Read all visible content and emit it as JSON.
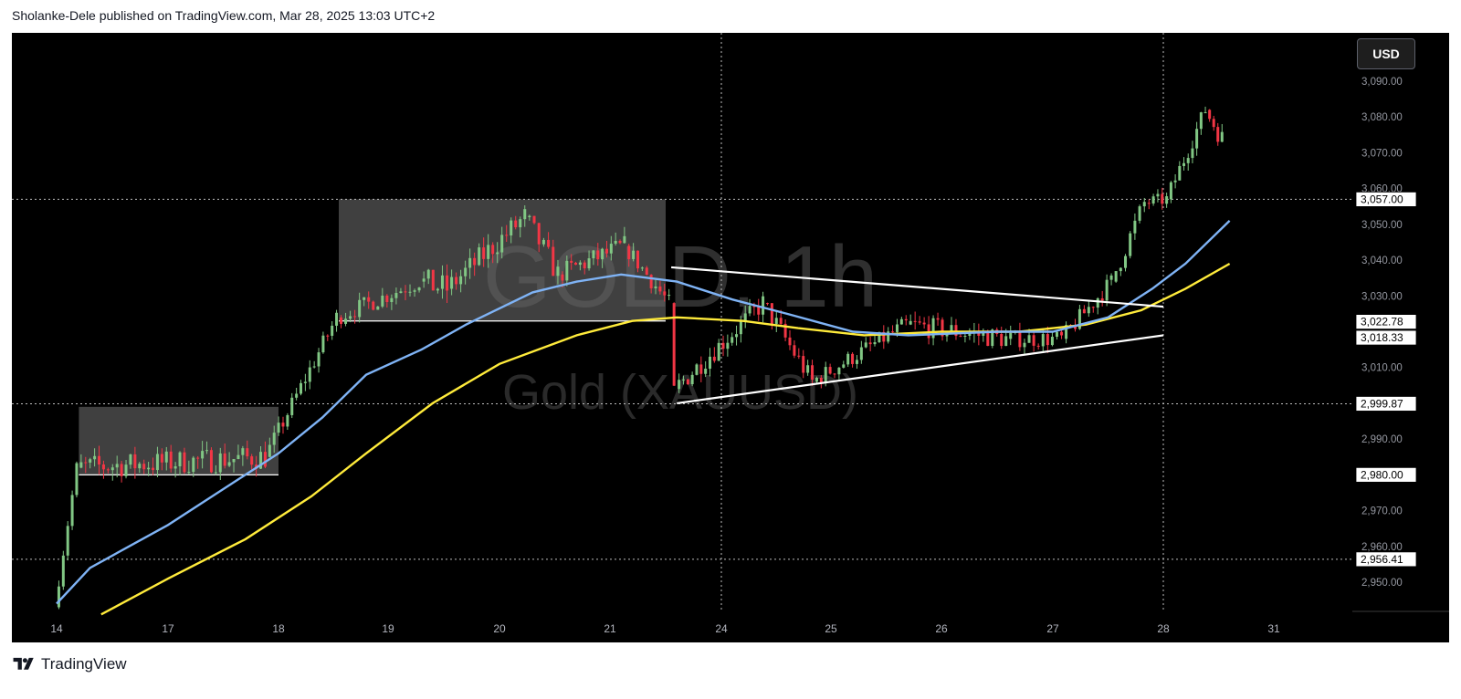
{
  "header": {
    "text": "Sholanke-Dele published on TradingView.com, Mar 28, 2025 13:03 UTC+2"
  },
  "footer": {
    "brand": "TradingView"
  },
  "toolbar": {
    "currency": "USD"
  },
  "watermark": {
    "symbol": "GOLD, 1h",
    "name": "Gold (XAUUSD)"
  },
  "colors": {
    "background": "#000000",
    "up": "#81c784",
    "down": "#f23645",
    "ma_fast": "#7fb3f5",
    "ma_slow": "#ffeb3b",
    "box": "#6b6b6b",
    "trendline": "#ffffff"
  },
  "chart_data": {
    "type": "candlestick",
    "symbol": "GOLD",
    "timeframe": "1h",
    "currency": "USD",
    "x_tick_labels": [
      "14",
      "17",
      "18",
      "19",
      "20",
      "21",
      "24",
      "25",
      "26",
      "27",
      "28",
      "31"
    ],
    "y_tick_labels": [
      "3,090.00",
      "3,080.00",
      "3,070.00",
      "3,060.00",
      "3,050.00",
      "3,040.00",
      "3,030.00",
      "3,010.00",
      "2,990.00",
      "2,970.00",
      "2,960.00",
      "2,950.00"
    ],
    "y_range": [
      2941,
      3100
    ],
    "price_labels": [
      {
        "value": 3057.0,
        "text": "3,057.00",
        "style": "dotted-line"
      },
      {
        "value": 3022.78,
        "text": "3,022.78",
        "style": "plain"
      },
      {
        "value": 3018.33,
        "text": "3,018.33",
        "style": "plain"
      },
      {
        "value": 2999.87,
        "text": "2,999.87",
        "style": "dotted-line"
      },
      {
        "value": 2980.0,
        "text": "2,980.00",
        "style": "plain"
      },
      {
        "value": 2956.41,
        "text": "2,956.41",
        "style": "dotted-line"
      }
    ],
    "vertical_markers": [
      "24",
      "28"
    ],
    "segments": [
      {
        "from": "14",
        "to": "14.2",
        "start": 2943,
        "end": 2982,
        "vol": 4
      },
      {
        "from": "14.2",
        "to": "17.9",
        "start": 2982,
        "end": 2985,
        "vol": 7
      },
      {
        "from": "17.9",
        "to": "18.55",
        "start": 2985,
        "end": 3024,
        "vol": 5
      },
      {
        "from": "18.55",
        "to": "19.3",
        "start": 3024,
        "end": 3034,
        "vol": 5
      },
      {
        "from": "19.3",
        "to": "19.55",
        "start": 3034,
        "end": 3032,
        "vol": 8
      },
      {
        "from": "19.55",
        "to": "20.25",
        "start": 3032,
        "end": 3052,
        "vol": 7
      },
      {
        "from": "20.25",
        "to": "20.55",
        "start": 3052,
        "end": 3036,
        "vol": 7
      },
      {
        "from": "20.55",
        "to": "21.15",
        "start": 3036,
        "end": 3044,
        "vol": 6
      },
      {
        "from": "21.15",
        "to": "21.55",
        "start": 3044,
        "end": 3028,
        "vol": 5
      },
      {
        "from": "21.55",
        "to": "21.6",
        "start": 3028,
        "end": 3004,
        "vol": 3
      },
      {
        "from": "21.6",
        "to": "24.4",
        "start": 3004,
        "end": 3028,
        "vol": 6
      },
      {
        "from": "24.4",
        "to": "24.85",
        "start": 3028,
        "end": 3006,
        "vol": 6
      },
      {
        "from": "24.85",
        "to": "25.7",
        "start": 3006,
        "end": 3022,
        "vol": 5
      },
      {
        "from": "25.7",
        "to": "26.6",
        "start": 3022,
        "end": 3018,
        "vol": 6
      },
      {
        "from": "26.6",
        "to": "27.1",
        "start": 3018,
        "end": 3018,
        "vol": 5
      },
      {
        "from": "27.1",
        "to": "27.55",
        "start": 3018,
        "end": 3034,
        "vol": 5
      },
      {
        "from": "27.55",
        "to": "27.85",
        "start": 3034,
        "end": 3056,
        "vol": 6
      },
      {
        "from": "27.85",
        "to": "28.05",
        "start": 3056,
        "end": 3057,
        "vol": 4
      },
      {
        "from": "28.05",
        "to": "28.4",
        "start": 3057,
        "end": 3082,
        "vol": 5
      },
      {
        "from": "28.4",
        "to": "28.55",
        "start": 3082,
        "end": 3074,
        "vol": 6
      }
    ],
    "ma_fast": [
      [
        "14",
        2944
      ],
      [
        "14.3",
        2954
      ],
      [
        "17",
        2966
      ],
      [
        "17.5",
        2976
      ],
      [
        "18",
        2986
      ],
      [
        "18.4",
        2996
      ],
      [
        "18.8",
        3008
      ],
      [
        "19.3",
        3015
      ],
      [
        "19.7",
        3022
      ],
      [
        "20.3",
        3031
      ],
      [
        "20.7",
        3034
      ],
      [
        "21.1",
        3036
      ],
      [
        "21.6",
        3034
      ],
      [
        "24.1",
        3029
      ],
      [
        "24.6",
        3025
      ],
      [
        "25.2",
        3020
      ],
      [
        "25.7",
        3019
      ],
      [
        "26.5",
        3020
      ],
      [
        "27",
        3020
      ],
      [
        "27.5",
        3024
      ],
      [
        "27.9",
        3032
      ],
      [
        "28.2",
        3039
      ],
      [
        "28.6",
        3051
      ]
    ],
    "ma_slow": [
      [
        "14.4",
        2941
      ],
      [
        "17",
        2951
      ],
      [
        "17.7",
        2962
      ],
      [
        "18.3",
        2974
      ],
      [
        "18.8",
        2986
      ],
      [
        "19.4",
        3000
      ],
      [
        "20",
        3011
      ],
      [
        "20.7",
        3019
      ],
      [
        "21.2",
        3023
      ],
      [
        "21.6",
        3024
      ],
      [
        "24.2",
        3023
      ],
      [
        "24.7",
        3021
      ],
      [
        "25.3",
        3019
      ],
      [
        "26",
        3020
      ],
      [
        "26.7",
        3020
      ],
      [
        "27.3",
        3022
      ],
      [
        "27.8",
        3026
      ],
      [
        "28.2",
        3032
      ],
      [
        "28.6",
        3039
      ]
    ],
    "boxes": [
      {
        "from": "14.2",
        "to": "18",
        "top": 2999,
        "bottom": 2980
      },
      {
        "from": "18.55",
        "to": "21.5",
        "top": 3057,
        "bottom": 3023
      }
    ],
    "trendlines": [
      {
        "from": [
          "21.55",
          3038
        ],
        "to": [
          "28",
          3027
        ]
      },
      {
        "from": [
          "21.6",
          3000
        ],
        "to": [
          "28",
          3019
        ]
      }
    ]
  }
}
